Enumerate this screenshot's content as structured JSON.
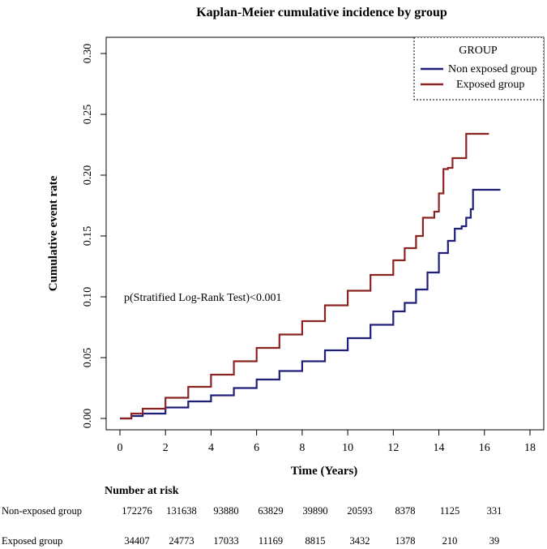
{
  "chart_data": {
    "type": "line",
    "title": "Kaplan-Meier cumulative incidence by group",
    "xlabel": "Time (Years)",
    "ylabel": "Cumulative event rate",
    "xlim": [
      0,
      18
    ],
    "ylim": [
      0,
      0.3
    ],
    "x_ticks": [
      0,
      2,
      4,
      6,
      8,
      10,
      12,
      14,
      16,
      18
    ],
    "y_ticks": [
      0,
      0.05,
      0.1,
      0.15,
      0.2,
      0.25,
      0.3
    ],
    "y_tick_labels": [
      "0.00",
      "0.05",
      "0.10",
      "0.15",
      "0.20",
      "0.25",
      "0.30"
    ],
    "grid": false,
    "legend": {
      "title": "GROUP",
      "position": "top-right",
      "entries": [
        {
          "name": "Non exposed group",
          "color": "#1f1f7a"
        },
        {
          "name": "Exposed group",
          "color": "#8b2323"
        }
      ]
    },
    "annotation": "p(Stratified Log-Rank Test)<0.001",
    "series": [
      {
        "name": "Non exposed group",
        "color": "#1f1f7a",
        "step": true,
        "x": [
          0,
          0.5,
          1,
          2,
          3,
          4,
          5,
          6,
          7,
          8,
          9,
          10,
          11,
          12,
          12.5,
          13,
          13.5,
          14,
          14.4,
          14.7,
          15.0,
          15.2,
          15.4,
          15.5,
          16.7
        ],
        "y": [
          0,
          0.002,
          0.004,
          0.009,
          0.014,
          0.019,
          0.025,
          0.032,
          0.039,
          0.047,
          0.056,
          0.066,
          0.077,
          0.088,
          0.095,
          0.106,
          0.12,
          0.136,
          0.146,
          0.156,
          0.158,
          0.165,
          0.172,
          0.188,
          0.188
        ]
      },
      {
        "name": "Exposed group",
        "color": "#8b2323",
        "step": true,
        "x": [
          0,
          0.5,
          1,
          2,
          3,
          4,
          5,
          6,
          7,
          8,
          9,
          10,
          11,
          12,
          12.5,
          13,
          13.3,
          13.5,
          13.8,
          14.0,
          14.2,
          14.4,
          14.6,
          15.2,
          16.2
        ],
        "y": [
          0,
          0.004,
          0.008,
          0.017,
          0.026,
          0.036,
          0.047,
          0.058,
          0.069,
          0.08,
          0.093,
          0.105,
          0.118,
          0.13,
          0.14,
          0.15,
          0.165,
          0.165,
          0.17,
          0.185,
          0.205,
          0.206,
          0.214,
          0.234,
          0.234
        ]
      }
    ],
    "number_at_risk": {
      "heading": "Number at risk",
      "rows": [
        {
          "label": "Non-exposed group",
          "values": [
            "172276",
            "131638",
            "93880",
            "63829",
            "39890",
            "20593",
            "8378",
            "1125",
            "331"
          ]
        },
        {
          "label": "Exposed group",
          "values": [
            "34407",
            "24773",
            "17033",
            "11169",
            "8815",
            "3432",
            "1378",
            "210",
            "39"
          ]
        }
      ]
    }
  }
}
